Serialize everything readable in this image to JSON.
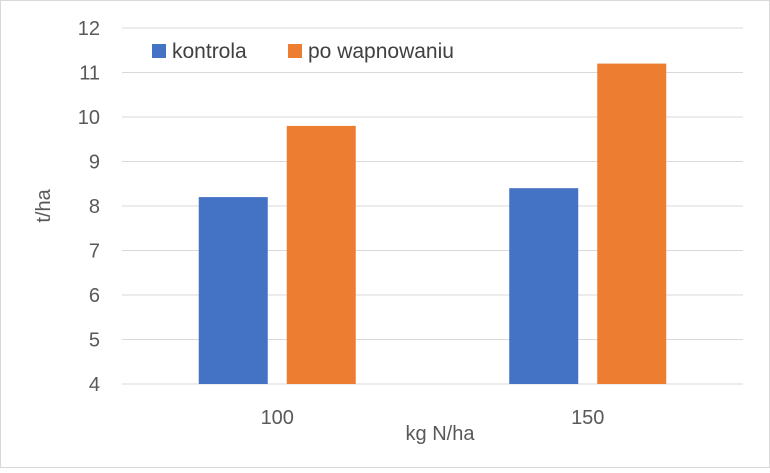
{
  "chart_data": {
    "type": "bar",
    "title": "",
    "xlabel": "kg N/ha",
    "ylabel": "t/ha",
    "categories": [
      "100",
      "150"
    ],
    "series": [
      {
        "name": "kontrola",
        "values": [
          8.2,
          8.4
        ],
        "color": "#4472C4"
      },
      {
        "name": "po wapnowaniu",
        "values": [
          9.8,
          11.2
        ],
        "color": "#ED7D31"
      }
    ],
    "ylim": [
      4,
      12
    ],
    "yticks": [
      4,
      5,
      6,
      7,
      8,
      9,
      10,
      11,
      12
    ],
    "grid": true,
    "legend_position": "top-left"
  }
}
